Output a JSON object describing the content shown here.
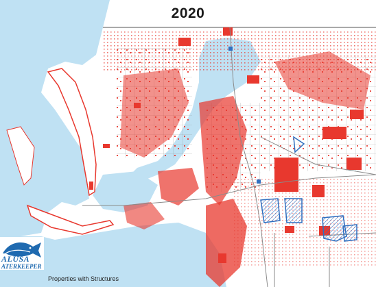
{
  "map": {
    "title": "2020",
    "caption": "Properties with Structures",
    "colors": {
      "water": "#bfe1f3",
      "land": "#ffffff",
      "structures": "#e8382e",
      "roads": "#8a8a8a",
      "highlight_outline": "#2f6fc0",
      "logo_blue": "#1f6ab0"
    },
    "logo": {
      "icon": "fish-icon",
      "line1": "ALUSA",
      "line2": "ATERKEEPER"
    }
  }
}
